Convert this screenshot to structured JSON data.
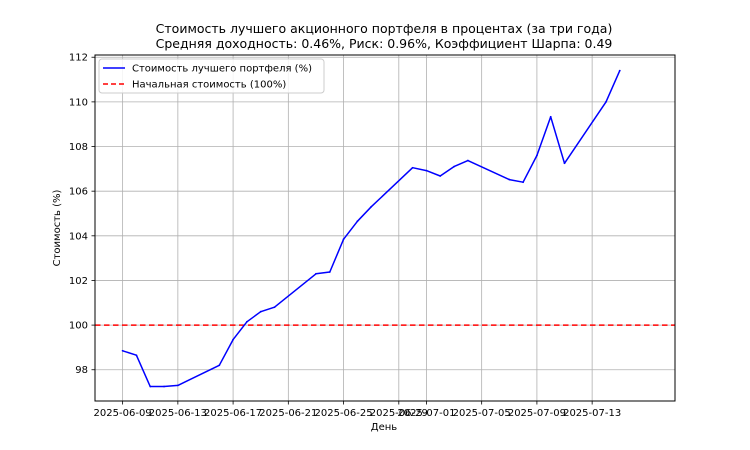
{
  "chart_data": {
    "type": "line",
    "title": "Стоимость лучшего акционного портфеля в процентах (за три года)",
    "subtitle": "Средняя доходность: 0.46%, Риск: 0.96%, Коэффициент Шарпа: 0.49",
    "xlabel": "День",
    "ylabel": "Стоимость (%)",
    "xlim": [
      "2025-06-07",
      "2025-07-19"
    ],
    "ylim": [
      96.6,
      112.1
    ],
    "grid": true,
    "legend_position": "top-left",
    "x_ticks": [
      "2025-06-09",
      "2025-06-13",
      "2025-06-17",
      "2025-06-21",
      "2025-06-25",
      "2025-06-29",
      "2025-07-01",
      "2025-07-05",
      "2025-07-09",
      "2025-07-13"
    ],
    "y_ticks": [
      98,
      100,
      102,
      104,
      106,
      108,
      110,
      112
    ],
    "series": [
      {
        "name": "Стоимость лучшего портфеля (%)",
        "color": "#0000ff",
        "style": "solid",
        "x": [
          "2025-06-09",
          "2025-06-10",
          "2025-06-11",
          "2025-06-12",
          "2025-06-13",
          "2025-06-16",
          "2025-06-17",
          "2025-06-18",
          "2025-06-19",
          "2025-06-20",
          "2025-06-23",
          "2025-06-24",
          "2025-06-25",
          "2025-06-26",
          "2025-06-27",
          "2025-06-30",
          "2025-07-01",
          "2025-07-02",
          "2025-07-03",
          "2025-07-04",
          "2025-07-07",
          "2025-07-08",
          "2025-07-09",
          "2025-07-10",
          "2025-07-11",
          "2025-07-14",
          "2025-07-15"
        ],
        "y": [
          98.85,
          98.65,
          97.25,
          97.25,
          97.3,
          98.2,
          99.35,
          100.15,
          100.6,
          100.8,
          102.3,
          102.38,
          103.85,
          104.65,
          105.3,
          107.05,
          106.92,
          106.68,
          107.1,
          107.37,
          106.52,
          106.4,
          107.6,
          109.33,
          107.25,
          110.0,
          111.4
        ]
      },
      {
        "name": "Начальная стоимость (100%)",
        "color": "#ff0000",
        "style": "dashed",
        "y": 100
      }
    ]
  }
}
